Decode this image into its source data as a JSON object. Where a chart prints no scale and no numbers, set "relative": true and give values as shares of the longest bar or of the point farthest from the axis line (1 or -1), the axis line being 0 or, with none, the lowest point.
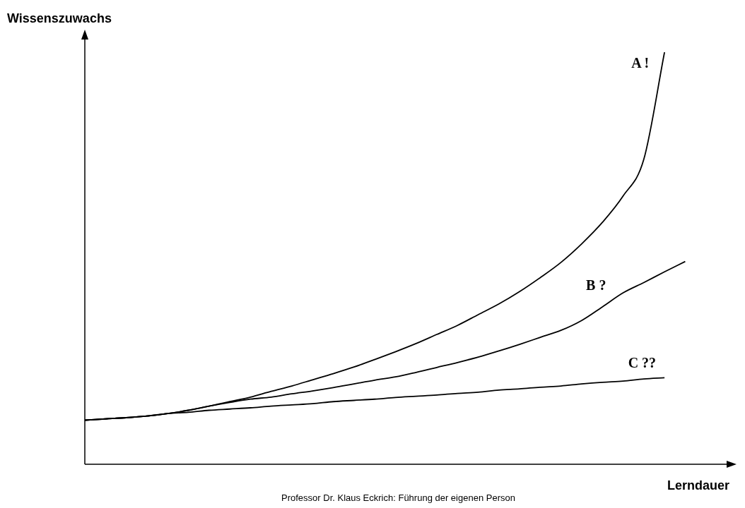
{
  "chart_data": {
    "type": "line",
    "relative": true,
    "xlabel": "Lerndauer",
    "ylabel": "Wissenszuwachs",
    "categories": [
      null,
      null,
      null,
      null,
      null,
      null,
      null,
      null,
      null,
      null,
      null,
      null,
      null,
      null,
      null,
      null,
      null,
      null,
      null,
      null,
      null,
      null,
      null,
      null,
      null,
      null,
      null,
      null,
      null,
      null,
      null,
      null
    ],
    "series": [
      {
        "name": "A !",
        "color": "#000000",
        "values": [
          0.107,
          0.11,
          0.113,
          0.117,
          0.123,
          0.131,
          0.141,
          0.152,
          0.163,
          0.177,
          0.19,
          0.205,
          0.22,
          0.236,
          0.254,
          0.273,
          0.293,
          0.315,
          0.337,
          0.363,
          0.389,
          0.419,
          0.453,
          0.49,
          0.535,
          0.587,
          0.651,
          0.74,
          1,
          null,
          null,
          null
        ]
      },
      {
        "name": "B ?",
        "color": "#000000",
        "values": [
          0.107,
          0.11,
          0.113,
          0.117,
          0.123,
          0.131,
          0.141,
          0.15,
          0.158,
          0.163,
          0.171,
          0.178,
          0.186,
          0.195,
          0.204,
          0.212,
          0.223,
          0.235,
          0.247,
          0.26,
          0.275,
          0.291,
          0.308,
          0.325,
          0.349,
          0.382,
          0.416,
          0.441,
          0.467,
          0.492,
          null,
          null
        ]
      },
      {
        "name": "C ??",
        "color": "#000000",
        "values": [
          0.107,
          0.11,
          0.113,
          0.117,
          0.123,
          0.126,
          0.131,
          0.134,
          0.137,
          0.141,
          0.144,
          0.147,
          0.152,
          0.155,
          0.158,
          0.162,
          0.165,
          0.168,
          0.172,
          0.175,
          0.18,
          0.183,
          0.187,
          0.19,
          0.195,
          0.199,
          0.202,
          0.207,
          0.21,
          null,
          null,
          null
        ]
      }
    ],
    "grid": false,
    "legend": false,
    "marker": "none",
    "line_style": "solid",
    "annotations": [
      "Professor Dr. Klaus Eckrich: Führung der eigenen Person"
    ]
  }
}
